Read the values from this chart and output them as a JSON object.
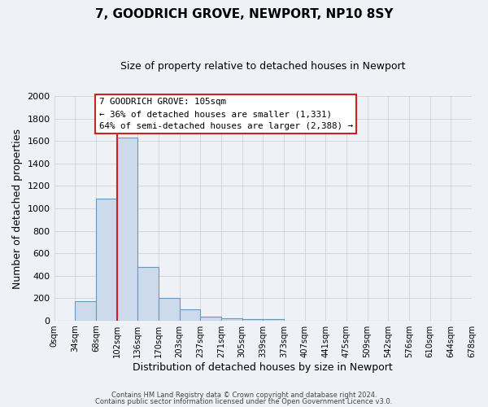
{
  "title": "7, GOODRICH GROVE, NEWPORT, NP10 8SY",
  "subtitle": "Size of property relative to detached houses in Newport",
  "xlabel": "Distribution of detached houses by size in Newport",
  "ylabel": "Number of detached properties",
  "bar_color": "#ccdaeb",
  "bar_edge_color": "#6699bb",
  "bin_labels": [
    "0sqm",
    "34sqm",
    "68sqm",
    "102sqm",
    "136sqm",
    "170sqm",
    "203sqm",
    "237sqm",
    "271sqm",
    "305sqm",
    "339sqm",
    "373sqm",
    "407sqm",
    "441sqm",
    "475sqm",
    "509sqm",
    "542sqm",
    "576sqm",
    "610sqm",
    "644sqm",
    "678sqm"
  ],
  "bar_values": [
    0,
    170,
    1090,
    1630,
    480,
    200,
    100,
    35,
    20,
    15,
    12,
    0,
    0,
    0,
    0,
    0,
    0,
    0,
    0,
    0
  ],
  "ylim": [
    0,
    2000
  ],
  "yticks": [
    0,
    200,
    400,
    600,
    800,
    1000,
    1200,
    1400,
    1600,
    1800,
    2000
  ],
  "property_line_x": 102,
  "property_line_color": "#cc2222",
  "annotation_line1": "7 GOODRICH GROVE: 105sqm",
  "annotation_line2": "← 36% of detached houses are smaller (1,331)",
  "annotation_line3": "64% of semi-detached houses are larger (2,388) →",
  "annotation_box_color": "#ffffff",
  "annotation_box_edge_color": "#cc2222",
  "footer_line1": "Contains HM Land Registry data © Crown copyright and database right 2024.",
  "footer_line2": "Contains public sector information licensed under the Open Government Licence v3.0.",
  "bin_width": 34,
  "grid_color": "#cccccc",
  "background_color": "#eef2f7",
  "title_fontsize": 11,
  "subtitle_fontsize": 9
}
